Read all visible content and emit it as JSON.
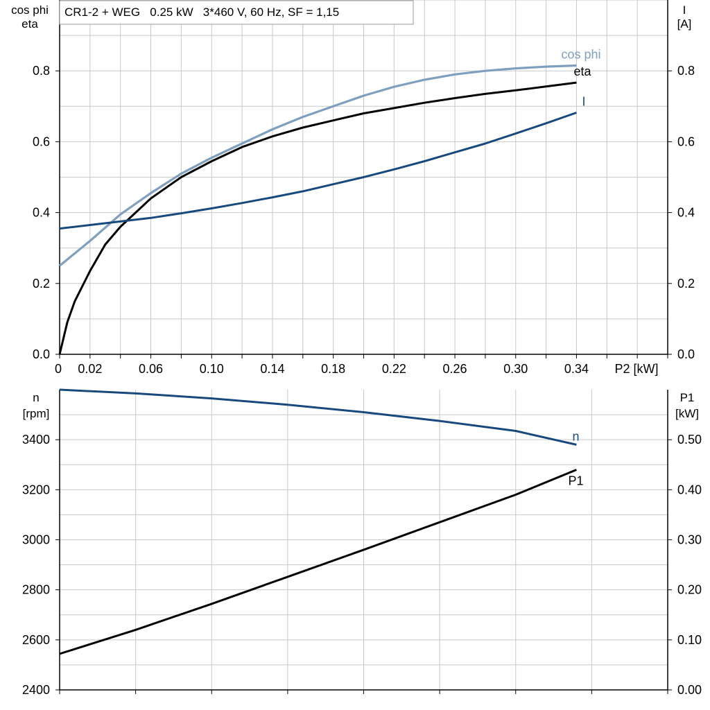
{
  "header": {
    "title": "CR1-2 + WEG   0.25 kW   3*460 V, 60 Hz, SF = 1,15"
  },
  "colors": {
    "cos_phi": "#7f9fbf",
    "eta": "#000000",
    "current": "#18497c",
    "speed": "#18497c",
    "p1": "#000000",
    "grid": "#c8c8c8"
  },
  "chart_data": [
    {
      "type": "line",
      "title": "CR1-2 + WEG   0.25 kW   3*460 V, 60 Hz, SF = 1,15",
      "xlabel": "P2 [kW]",
      "ylabel_left": [
        "cos phi",
        "eta"
      ],
      "ylabel_right": [
        "I",
        "[A]"
      ],
      "xlim": [
        0,
        0.4
      ],
      "ylim_left": [
        0,
        1.0
      ],
      "ylim_right": [
        0,
        1.0
      ],
      "x_ticks": [
        {
          "v": 0,
          "label": "0"
        },
        {
          "v": 0.02,
          "label": "0.02"
        },
        {
          "v": 0.06,
          "label": "0.06"
        },
        {
          "v": 0.1,
          "label": "0.10"
        },
        {
          "v": 0.14,
          "label": "0.14"
        },
        {
          "v": 0.18,
          "label": "0.18"
        },
        {
          "v": 0.22,
          "label": "0.22"
        },
        {
          "v": 0.26,
          "label": "0.26"
        },
        {
          "v": 0.3,
          "label": "0.30"
        },
        {
          "v": 0.34,
          "label": "0.34"
        }
      ],
      "y_ticks_left": [
        {
          "v": 0.0,
          "label": "0.0"
        },
        {
          "v": 0.2,
          "label": "0.2"
        },
        {
          "v": 0.4,
          "label": "0.4"
        },
        {
          "v": 0.6,
          "label": "0.6"
        },
        {
          "v": 0.8,
          "label": "0.8"
        }
      ],
      "y_ticks_right": [
        {
          "v": 0.0,
          "label": "0.0"
        },
        {
          "v": 0.2,
          "label": "0.2"
        },
        {
          "v": 0.4,
          "label": "0.4"
        },
        {
          "v": 0.6,
          "label": "0.6"
        },
        {
          "v": 0.8,
          "label": "0.8"
        }
      ],
      "grid": true,
      "series": [
        {
          "name": "cos phi",
          "axis": "left",
          "x": [
            0,
            0.02,
            0.04,
            0.06,
            0.08,
            0.1,
            0.12,
            0.14,
            0.16,
            0.18,
            0.2,
            0.22,
            0.24,
            0.26,
            0.28,
            0.3,
            0.32,
            0.34
          ],
          "y": [
            0.25,
            0.32,
            0.395,
            0.455,
            0.51,
            0.555,
            0.595,
            0.635,
            0.67,
            0.7,
            0.73,
            0.755,
            0.775,
            0.79,
            0.8,
            0.807,
            0.812,
            0.815
          ]
        },
        {
          "name": "eta",
          "axis": "left",
          "x": [
            0,
            0.005,
            0.01,
            0.02,
            0.03,
            0.04,
            0.05,
            0.06,
            0.08,
            0.1,
            0.12,
            0.14,
            0.16,
            0.18,
            0.2,
            0.22,
            0.24,
            0.26,
            0.28,
            0.3,
            0.32,
            0.34
          ],
          "y": [
            0.0,
            0.09,
            0.15,
            0.235,
            0.31,
            0.36,
            0.4,
            0.44,
            0.5,
            0.545,
            0.585,
            0.615,
            0.64,
            0.66,
            0.68,
            0.695,
            0.71,
            0.723,
            0.735,
            0.745,
            0.756,
            0.767
          ]
        },
        {
          "name": "I",
          "axis": "right",
          "x": [
            0,
            0.02,
            0.04,
            0.06,
            0.08,
            0.1,
            0.12,
            0.14,
            0.16,
            0.18,
            0.2,
            0.22,
            0.24,
            0.26,
            0.28,
            0.3,
            0.32,
            0.34
          ],
          "y": [
            0.355,
            0.365,
            0.375,
            0.385,
            0.398,
            0.412,
            0.427,
            0.443,
            0.46,
            0.48,
            0.5,
            0.522,
            0.545,
            0.57,
            0.595,
            0.623,
            0.652,
            0.682
          ]
        }
      ]
    },
    {
      "type": "line",
      "xlim": [
        0,
        0.4
      ],
      "ylabel_left": [
        "n",
        "[rpm]"
      ],
      "ylabel_right": [
        "P1",
        "[kW]"
      ],
      "ylim_left": [
        2400,
        3600
      ],
      "ylim_right": [
        0,
        0.6
      ],
      "y_ticks_left": [
        {
          "v": 2400,
          "label": "2400"
        },
        {
          "v": 2600,
          "label": "2600"
        },
        {
          "v": 2800,
          "label": "2800"
        },
        {
          "v": 3000,
          "label": "3000"
        },
        {
          "v": 3200,
          "label": "3200"
        },
        {
          "v": 3400,
          "label": "3400"
        }
      ],
      "y_ticks_right": [
        {
          "v": 0.0,
          "label": "0.00"
        },
        {
          "v": 0.1,
          "label": "0.10"
        },
        {
          "v": 0.2,
          "label": "0.20"
        },
        {
          "v": 0.3,
          "label": "0.30"
        },
        {
          "v": 0.4,
          "label": "0.40"
        },
        {
          "v": 0.5,
          "label": "0.50"
        }
      ],
      "grid": true,
      "series": [
        {
          "name": "n",
          "axis": "left",
          "x": [
            0,
            0.05,
            0.1,
            0.15,
            0.2,
            0.25,
            0.3,
            0.34
          ],
          "y": [
            3600,
            3585,
            3565,
            3540,
            3510,
            3475,
            3435,
            3380
          ]
        },
        {
          "name": "P1",
          "axis": "right",
          "x": [
            0,
            0.05,
            0.1,
            0.15,
            0.2,
            0.25,
            0.3,
            0.34
          ],
          "y": [
            0.072,
            0.12,
            0.172,
            0.226,
            0.28,
            0.335,
            0.39,
            0.44
          ]
        }
      ]
    }
  ]
}
